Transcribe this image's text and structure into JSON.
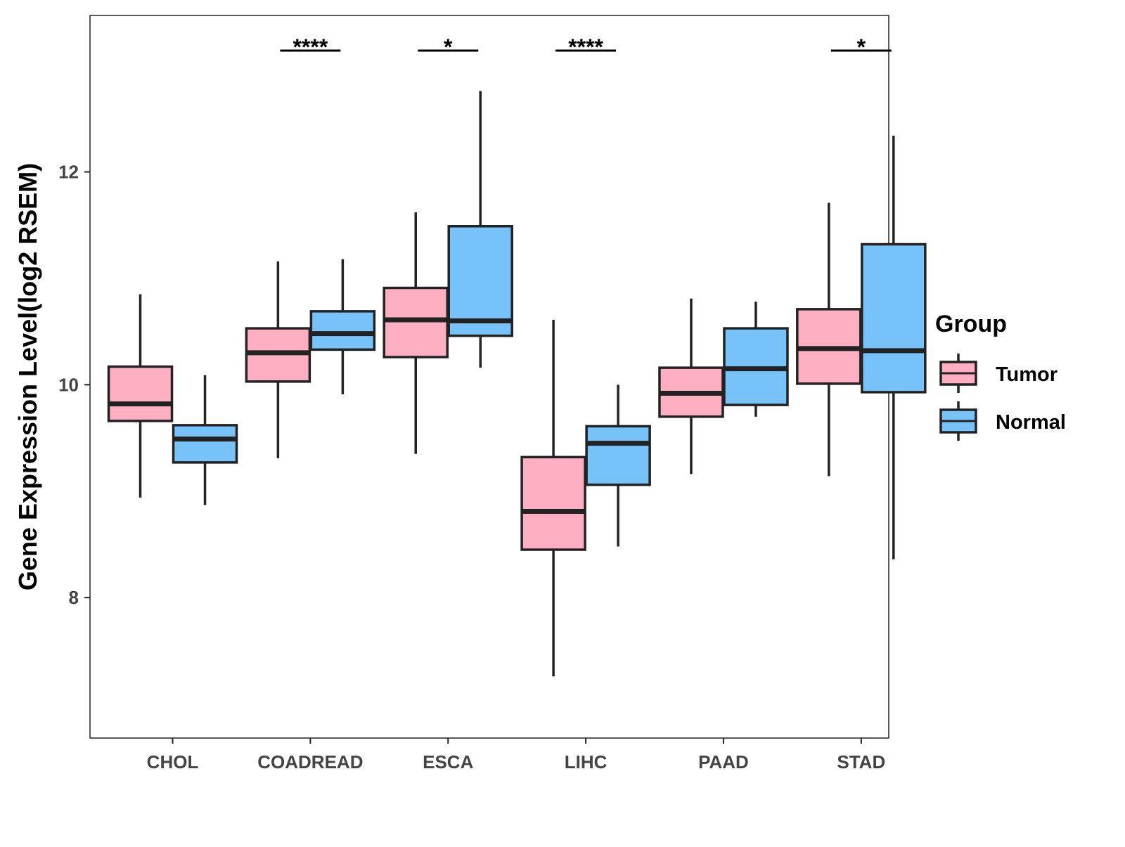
{
  "chart_data": {
    "type": "boxplot",
    "title": "",
    "xlabel": "",
    "ylabel": "Gene Expression Level(log2 RSEM)",
    "ylim": [
      6.68,
      13.47
    ],
    "yticks": [
      8,
      10,
      12
    ],
    "ytick_labels": [
      "8",
      "10",
      "12"
    ],
    "categories": [
      "CHOL",
      "COADREAD",
      "ESCA",
      "LIHC",
      "PAAD",
      "STAD"
    ],
    "legend": {
      "title": "Group",
      "placement": "right",
      "entries": [
        "Tumor",
        "Normal"
      ]
    },
    "colors": {
      "Tumor": "#FFAFC1",
      "Normal": "#77C2F8"
    },
    "series": [
      {
        "name": "Tumor",
        "boxes": [
          {
            "min": 8.94,
            "q1": 9.66,
            "median": 9.82,
            "q3": 10.17,
            "max": 10.85
          },
          {
            "min": 9.31,
            "q1": 10.03,
            "median": 10.3,
            "q3": 10.53,
            "max": 11.16
          },
          {
            "min": 9.35,
            "q1": 10.26,
            "median": 10.61,
            "q3": 10.91,
            "max": 11.62
          },
          {
            "min": 7.26,
            "q1": 8.45,
            "median": 8.81,
            "q3": 9.32,
            "max": 10.61
          },
          {
            "min": 9.16,
            "q1": 9.7,
            "median": 9.92,
            "q3": 10.16,
            "max": 10.81
          },
          {
            "min": 9.14,
            "q1": 10.01,
            "median": 10.34,
            "q3": 10.71,
            "max": 11.71
          }
        ]
      },
      {
        "name": "Normal",
        "boxes": [
          {
            "min": 8.87,
            "q1": 9.27,
            "median": 9.49,
            "q3": 9.62,
            "max": 10.09
          },
          {
            "min": 9.91,
            "q1": 10.33,
            "median": 10.48,
            "q3": 10.69,
            "max": 11.18
          },
          {
            "min": 10.16,
            "q1": 10.46,
            "median": 10.6,
            "q3": 11.49,
            "max": 12.76
          },
          {
            "min": 8.48,
            "q1": 9.06,
            "median": 9.45,
            "q3": 9.61,
            "max": 10.0
          },
          {
            "min": 9.7,
            "q1": 9.81,
            "median": 10.15,
            "q3": 10.53,
            "max": 10.78
          },
          {
            "min": 8.36,
            "q1": 9.93,
            "median": 10.32,
            "q3": 11.32,
            "max": 12.34
          }
        ]
      }
    ],
    "annotations": [
      {
        "category": "COADREAD",
        "label": "****"
      },
      {
        "category": "ESCA",
        "label": "*"
      },
      {
        "category": "LIHC",
        "label": "****"
      },
      {
        "category": "STAD",
        "label": "*"
      }
    ]
  }
}
